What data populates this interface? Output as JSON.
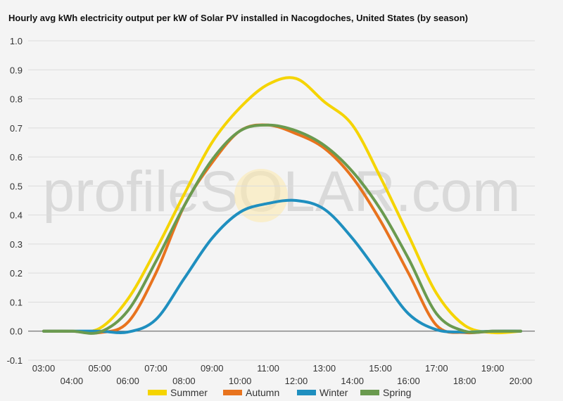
{
  "chart_data": {
    "type": "line",
    "title": "Hourly avg kWh electricity output per kW of Solar PV installed in Nacogdoches, United States (by season)",
    "watermark": "profileSOLAR.com",
    "x": [
      "03:00",
      "04:00",
      "05:00",
      "06:00",
      "07:00",
      "08:00",
      "09:00",
      "10:00",
      "11:00",
      "12:00",
      "13:00",
      "14:00",
      "15:00",
      "16:00",
      "17:00",
      "18:00",
      "19:00",
      "20:00"
    ],
    "ylim": [
      -0.1,
      1.0
    ],
    "yticks": [
      "-0.1",
      "0.0",
      "0.1",
      "0.2",
      "0.3",
      "0.4",
      "0.5",
      "0.6",
      "0.7",
      "0.8",
      "0.9",
      "1.0"
    ],
    "grid": true,
    "legend_position": "bottom",
    "series": [
      {
        "name": "Summer",
        "color": "#f5d400",
        "values": [
          0.0,
          0.0,
          0.01,
          0.11,
          0.28,
          0.47,
          0.65,
          0.77,
          0.85,
          0.87,
          0.79,
          0.71,
          0.53,
          0.33,
          0.13,
          0.02,
          -0.005,
          0.0
        ]
      },
      {
        "name": "Autumn",
        "color": "#e8731e",
        "values": [
          0.0,
          0.0,
          -0.005,
          0.03,
          0.2,
          0.43,
          0.58,
          0.69,
          0.71,
          0.68,
          0.63,
          0.53,
          0.38,
          0.2,
          0.02,
          -0.005,
          0.0,
          0.0
        ]
      },
      {
        "name": "Winter",
        "color": "#1f8fbf",
        "values": [
          0.0,
          0.0,
          0.0,
          -0.003,
          0.04,
          0.18,
          0.32,
          0.41,
          0.44,
          0.45,
          0.42,
          0.32,
          0.19,
          0.06,
          0.005,
          -0.003,
          0.0,
          0.0
        ]
      },
      {
        "name": "Spring",
        "color": "#6a9a4f",
        "values": [
          0.0,
          0.0,
          -0.003,
          0.07,
          0.24,
          0.43,
          0.59,
          0.69,
          0.71,
          0.69,
          0.64,
          0.55,
          0.42,
          0.25,
          0.06,
          0.0,
          0.0,
          0.0
        ]
      }
    ]
  }
}
